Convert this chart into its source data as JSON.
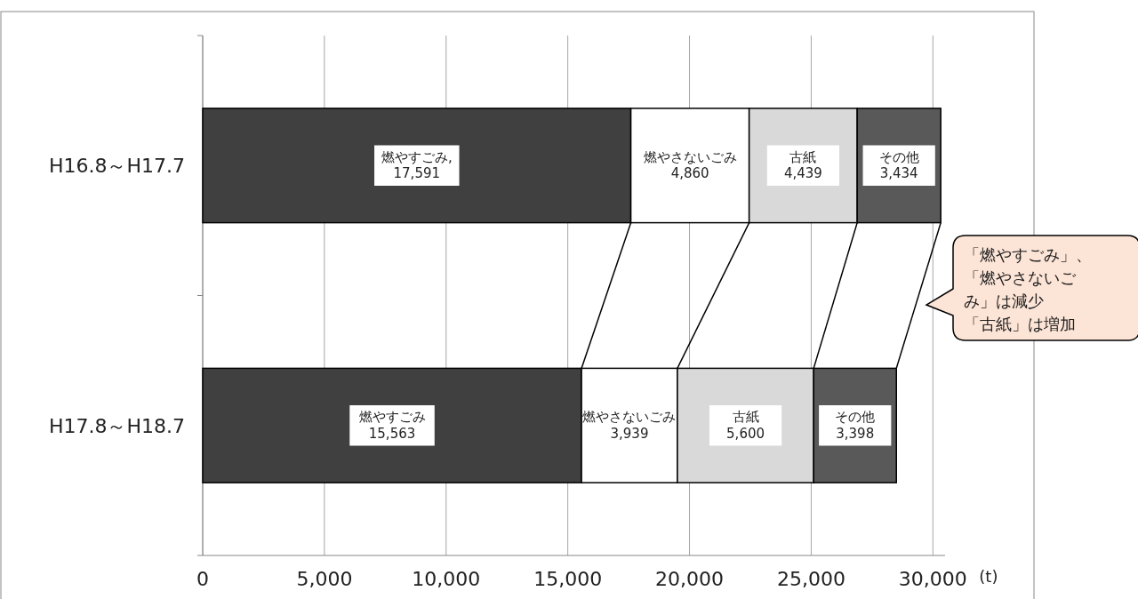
{
  "chart_data": {
    "type": "bar",
    "orientation": "horizontal",
    "stacked": true,
    "categories": [
      "H16.8～H17.7",
      "H17.8～H18.7"
    ],
    "series": [
      {
        "name": "燃やすごみ",
        "color": "#404040",
        "values": [
          17591,
          15563
        ],
        "value_labels": [
          ",\n17,591",
          "15,563"
        ]
      },
      {
        "name": "燃やさないごみ",
        "color": "#ffffff",
        "values": [
          4860,
          3939
        ],
        "value_labels": [
          "4,860",
          "3,939"
        ]
      },
      {
        "name": "古紙",
        "color": "#d9d9d9",
        "values": [
          4439,
          5600
        ],
        "value_labels": [
          "4,439",
          "5,600"
        ]
      },
      {
        "name": "その他",
        "color": "#595959",
        "values": [
          3434,
          3398
        ],
        "value_labels": [
          "3,434",
          "3,398"
        ]
      }
    ],
    "xlim": [
      0,
      30500
    ],
    "xticks": [
      0,
      {
        "value": 5000,
        "label": "5,000"
      },
      {
        "value": 10000,
        "label": "10,000"
      },
      {
        "value": 15000,
        "label": "15,000"
      },
      {
        "value": 20000,
        "label": "20,000"
      },
      {
        "value": 25000,
        "label": "25,000"
      },
      {
        "value": 30000,
        "label": "30,000"
      }
    ],
    "xlabel": "(t)",
    "grid": "x",
    "legend": false,
    "annotations": [
      "「燃やすごみ」、「燃やさないごみ」は減少「古紙」は増加"
    ]
  }
}
